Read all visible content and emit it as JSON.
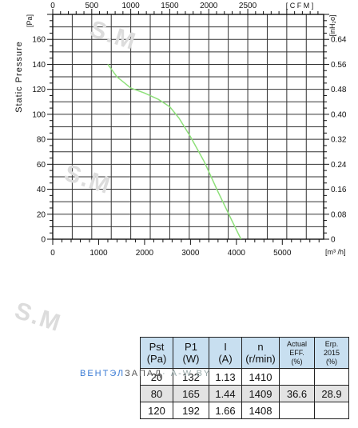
{
  "chart_data": {
    "type": "line",
    "ylabel": "Static Pressure",
    "y_left_unit": "[Pa]",
    "y_right_unit": "[inH₂o]",
    "x_top_unit": "[ C F M ]",
    "x_bottom_unit": "[m³ /h]",
    "x_bottom_ticks": [
      0,
      1000,
      2000,
      3000,
      4000,
      5000
    ],
    "x_top_ticks": [
      0,
      500,
      1000,
      1500,
      2000,
      2500
    ],
    "y_left_ticks": [
      0,
      20,
      40,
      60,
      80,
      100,
      120,
      140,
      160
    ],
    "y_right_ticks": [
      "0",
      "0.08",
      "0.16",
      "0.24",
      "0.32",
      "0.40",
      "0.48",
      "0.56",
      "0.64"
    ],
    "xlim": [
      0,
      5900
    ],
    "ylim": [
      0,
      180
    ],
    "grid": true,
    "line_color": "#8ee07a",
    "series": [
      {
        "x": [
          1200,
          1400,
          1700,
          2000,
          2300,
          2550,
          2750,
          3000,
          3300,
          3600,
          3900,
          4100
        ],
        "y": [
          140,
          130,
          121,
          117,
          112,
          106,
          97,
          82,
          62,
          38,
          15,
          0
        ]
      }
    ]
  },
  "watermark": "S.M",
  "table": {
    "header_row": [
      [
        "Pst",
        "(Pa)"
      ],
      [
        "P1",
        "(W)"
      ],
      [
        "I",
        "(A)"
      ],
      [
        "n",
        "(r/min)"
      ],
      [
        "Actual",
        "EFF.",
        "(%)"
      ],
      [
        "Erp.",
        "2015",
        "(%)"
      ]
    ],
    "rows": [
      [
        "20",
        "132",
        "1.13",
        "1410",
        "",
        ""
      ],
      [
        "80",
        "165",
        "1.44",
        "1409",
        "36.6",
        "28.9"
      ],
      [
        "120",
        "192",
        "1.66",
        "1408",
        "",
        ""
      ]
    ]
  },
  "brand": {
    "part1": "ВЕНТЭЛ",
    "part2": "ЗАПАД",
    "part3": "· A-W.BY"
  }
}
